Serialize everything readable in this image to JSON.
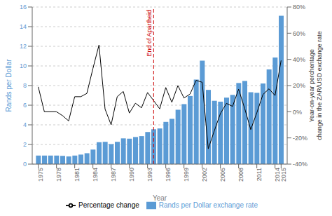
{
  "chart_data": {
    "type": "bar",
    "x": [
      1975,
      1976,
      1977,
      1978,
      1979,
      1980,
      1981,
      1982,
      1983,
      1984,
      1985,
      1986,
      1987,
      1988,
      1989,
      1990,
      1991,
      1992,
      1993,
      1994,
      1995,
      1996,
      1997,
      1998,
      1999,
      2000,
      2001,
      2002,
      2003,
      2004,
      2005,
      2006,
      2007,
      2008,
      2009,
      2010,
      2011,
      2012,
      2013,
      2014,
      2015
    ],
    "series": [
      {
        "name": "Rands per Dollar exchange rate",
        "type": "bar",
        "color": "#5b9bd5",
        "values": [
          0.87,
          0.87,
          0.87,
          0.87,
          0.84,
          0.78,
          0.87,
          0.97,
          1.11,
          1.48,
          2.23,
          2.27,
          2.04,
          2.27,
          2.62,
          2.59,
          2.76,
          2.85,
          3.27,
          3.55,
          3.63,
          4.3,
          4.61,
          5.53,
          6.11,
          6.94,
          8.61,
          10.54,
          7.56,
          6.45,
          6.36,
          6.77,
          7.05,
          8.26,
          8.47,
          7.32,
          7.26,
          8.21,
          9.65,
          10.85,
          15.1
        ]
      },
      {
        "name": "Percentage change",
        "type": "line",
        "color": "#000000",
        "axis": "y2",
        "values": [
          19.0,
          0.0,
          0.0,
          0.0,
          -3.0,
          -7.0,
          11.5,
          11.5,
          14.0,
          33.0,
          51.0,
          2.0,
          -10.0,
          11.5,
          15.5,
          -1.0,
          6.5,
          3.0,
          14.7,
          8.5,
          2.2,
          18.5,
          7.2,
          20.0,
          10.5,
          13.5,
          24.0,
          22.5,
          -28.3,
          -14.5,
          -1.4,
          6.4,
          4.1,
          17.2,
          2.5,
          -13.6,
          -0.8,
          13.1,
          17.5,
          12.4,
          39.2
        ]
      }
    ],
    "xlabel": "Year",
    "ylabel": "Rands per Dollar",
    "y2label": "Year-on-year perchentage\nchange in the ZAR/USD exchange rate",
    "xlim": [
      1974,
      2016
    ],
    "xticks": [
      1975,
      1978,
      1981,
      1984,
      1987,
      1990,
      1993,
      1996,
      1999,
      2002,
      2005,
      2008,
      2011,
      2014,
      2015
    ],
    "ylim": [
      0,
      16
    ],
    "yticks": [
      0,
      2,
      4,
      6,
      8,
      10,
      12,
      14,
      16
    ],
    "y2lim": [
      -40,
      80
    ],
    "y2ticks": [
      {
        "value": -40,
        "label": "-40%"
      },
      {
        "value": -20,
        "label": "-20%"
      },
      {
        "value": 0,
        "label": "0%"
      },
      {
        "value": 20,
        "label": "20%"
      },
      {
        "value": 40,
        "label": "40%"
      },
      {
        "value": 60,
        "label": "60%"
      },
      {
        "value": 80,
        "label": "80%"
      }
    ],
    "grid": true,
    "legend": "bottom",
    "annotations": [
      {
        "text": "End of Apartheid",
        "x": 1994,
        "color": "#cc0000",
        "line_style": "dashed"
      }
    ]
  }
}
